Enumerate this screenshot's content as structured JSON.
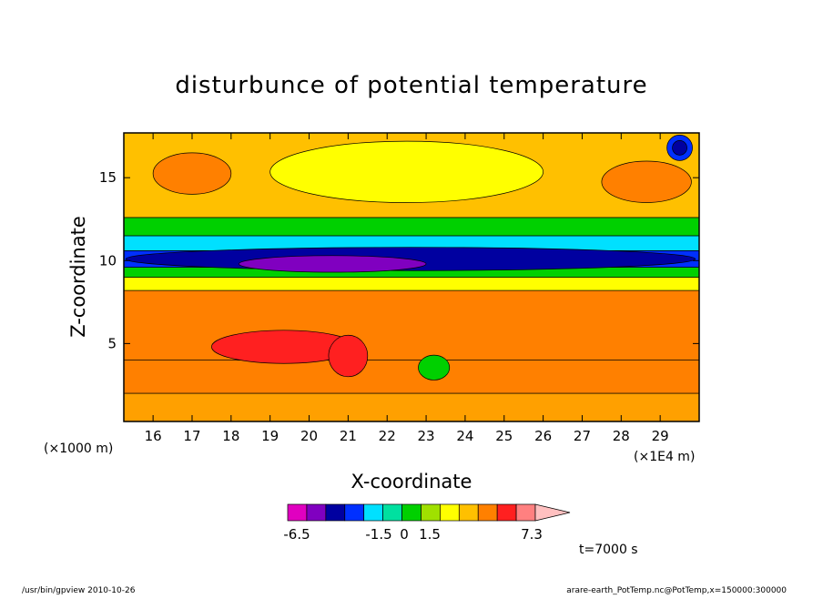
{
  "chart_data": {
    "type": "heatmap",
    "title": "disturbunce of potential temperature",
    "xlabel": "X-coordinate",
    "ylabel": "Z-coordinate",
    "x_unit_left": "(×1000 m)",
    "x_unit_right": "(×1E4 m)",
    "x_ticks": [
      "16",
      "17",
      "18",
      "19",
      "20",
      "21",
      "22",
      "23",
      "24",
      "25",
      "26",
      "27",
      "28",
      "29"
    ],
    "y_ticks": [
      "5",
      "10",
      "15"
    ],
    "xlim": [
      15.25,
      30.0
    ],
    "ylim": [
      0.3,
      17.7
    ],
    "time_label": "t=7000 s",
    "colorbar": {
      "ticks": [
        "-6.5",
        "-1.5",
        "0",
        "1.5",
        "7.3"
      ],
      "colors": [
        "#e000c0",
        "#8000c0",
        "#0000a0",
        "#0030ff",
        "#00e0ff",
        "#00e0a0",
        "#00d000",
        "#a0e000",
        "#ffff00",
        "#ffc000",
        "#ff8000",
        "#ff2020",
        "#ff8080",
        "#ffc0c0"
      ]
    },
    "layers": [
      {
        "z_range": [
          0.3,
          2.0
        ],
        "value_class": "orange-yellow",
        "color": "#ffa000"
      },
      {
        "z_range": [
          2.0,
          4.0
        ],
        "value_class": "orange",
        "color": "#ff8000"
      },
      {
        "z_range": [
          4.0,
          8.2
        ],
        "value_class": "orange",
        "color": "#ff8000"
      },
      {
        "z_range": [
          8.2,
          9.0
        ],
        "value_class": "yellow",
        "color": "#ffff00"
      },
      {
        "z_range": [
          9.0,
          9.6
        ],
        "value_class": "green",
        "color": "#00d000"
      },
      {
        "z_range": [
          9.6,
          10.6
        ],
        "value_class": "blue",
        "color": "#0030ff"
      },
      {
        "z_range": [
          10.6,
          11.5
        ],
        "value_class": "cyan",
        "color": "#00e0ff"
      },
      {
        "z_range": [
          11.5,
          12.6
        ],
        "value_class": "green",
        "color": "#00d000"
      },
      {
        "z_range": [
          12.6,
          17.7
        ],
        "value_class": "yellow-orange",
        "color": "#ffc000"
      }
    ],
    "features": [
      {
        "name": "min-core",
        "x_range": [
          18.2,
          23.0
        ],
        "z_range": [
          9.3,
          10.3
        ],
        "color": "#8000c0"
      },
      {
        "name": "upper-right-min",
        "x": 29.5,
        "z": 16.8,
        "color": "#0000a0"
      },
      {
        "name": "max-patch",
        "x_range": [
          17.5,
          21.2
        ],
        "z_range": [
          3.8,
          5.8
        ],
        "color": "#ff2020"
      }
    ]
  },
  "footer": {
    "left": "/usr/bin/gpview   2010-10-26",
    "right": "arare-earth_PotTemp.nc@PotTemp,x=150000:300000"
  }
}
